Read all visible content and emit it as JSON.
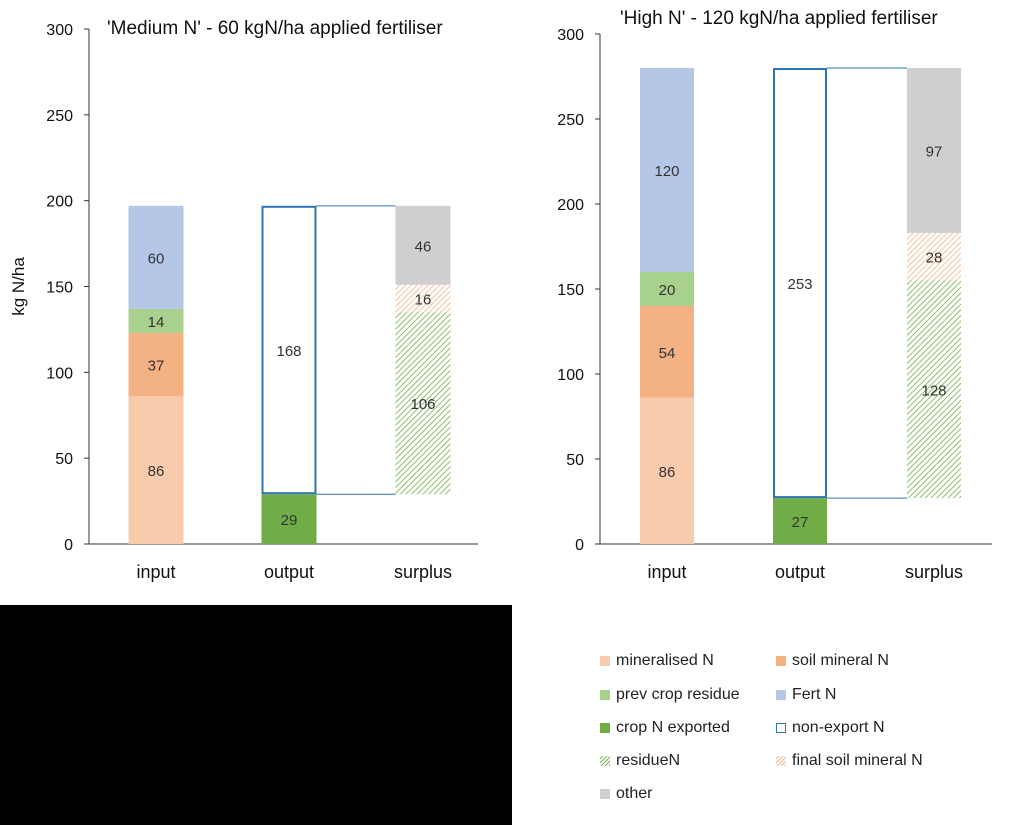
{
  "chart_data": [
    {
      "type": "bar",
      "stacked": true,
      "title": "'Medium N' - 60 kgN/ha applied fertiliser",
      "ylabel": "kg N/ha",
      "ylim": [
        0,
        300
      ],
      "yticks": [
        "0",
        "50",
        "100",
        "150",
        "200",
        "250",
        "300"
      ],
      "categories": [
        "input",
        "output",
        "surplus"
      ],
      "stacks": {
        "input": [
          {
            "series": "mineralised N",
            "value": 86,
            "label": "86"
          },
          {
            "series": "soil mineral N",
            "value": 37,
            "label": "37"
          },
          {
            "series": "prev crop residue",
            "value": 14,
            "label": "14"
          },
          {
            "series": "Fert N",
            "value": 60,
            "label": "60"
          }
        ],
        "output": [
          {
            "series": "crop N exported",
            "value": 29,
            "label": "29"
          },
          {
            "series": "non-export N",
            "value": 168,
            "label": "168"
          }
        ],
        "surplus": [
          {
            "series": "invisible",
            "value": 29,
            "label": ""
          },
          {
            "series": "residueN",
            "value": 106,
            "label": "106"
          },
          {
            "series": "final soil mineral N",
            "value": 16,
            "label": "16"
          },
          {
            "series": "other",
            "value": 46,
            "label": "46"
          }
        ]
      }
    },
    {
      "type": "bar",
      "stacked": true,
      "title": "'High N' - 120 kgN/ha applied fertiliser",
      "ylabel": "",
      "ylim": [
        0,
        300
      ],
      "yticks": [
        "0",
        "50",
        "100",
        "150",
        "200",
        "250",
        "300"
      ],
      "categories": [
        "input",
        "output",
        "surplus"
      ],
      "stacks": {
        "input": [
          {
            "series": "mineralised N",
            "value": 86,
            "label": "86"
          },
          {
            "series": "soil mineral N",
            "value": 54,
            "label": "54"
          },
          {
            "series": "prev crop residue",
            "value": 20,
            "label": "20"
          },
          {
            "series": "Fert N",
            "value": 120,
            "label": "120"
          }
        ],
        "output": [
          {
            "series": "crop N exported",
            "value": 27,
            "label": "27"
          },
          {
            "series": "non-export N",
            "value": 253,
            "label": "253"
          }
        ],
        "surplus": [
          {
            "series": "invisible",
            "value": 27,
            "label": ""
          },
          {
            "series": "residueN",
            "value": 128,
            "label": "128"
          },
          {
            "series": "final soil mineral N",
            "value": 28,
            "label": "28"
          },
          {
            "series": "other",
            "value": 97,
            "label": "97"
          }
        ]
      }
    }
  ],
  "legend": [
    {
      "key": "mineralised N",
      "label": "mineralised N"
    },
    {
      "key": "soil mineral N",
      "label": "soil mineral N"
    },
    {
      "key": "prev crop residue",
      "label": "prev crop residue"
    },
    {
      "key": "Fert N",
      "label": "Fert N"
    },
    {
      "key": "crop N exported",
      "label": "crop N exported"
    },
    {
      "key": "non-export N",
      "label": "non-export N"
    },
    {
      "key": "residueN",
      "label": "residueN"
    },
    {
      "key": "final soil mineral N",
      "label": "final soil mineral N"
    },
    {
      "key": "other",
      "label": "other"
    }
  ],
  "colors": {
    "mineralised N": "#f8cbad",
    "soil mineral N": "#f4b183",
    "prev crop residue": "#a9d18e",
    "Fert N": "#b4c7e7",
    "crop N exported": "#70ad47",
    "non-export N": "#2e75b6",
    "residueN": "#70ad47",
    "final soil mineral N": "#f4b183",
    "other": "#d0cece",
    "background": "#000000"
  }
}
